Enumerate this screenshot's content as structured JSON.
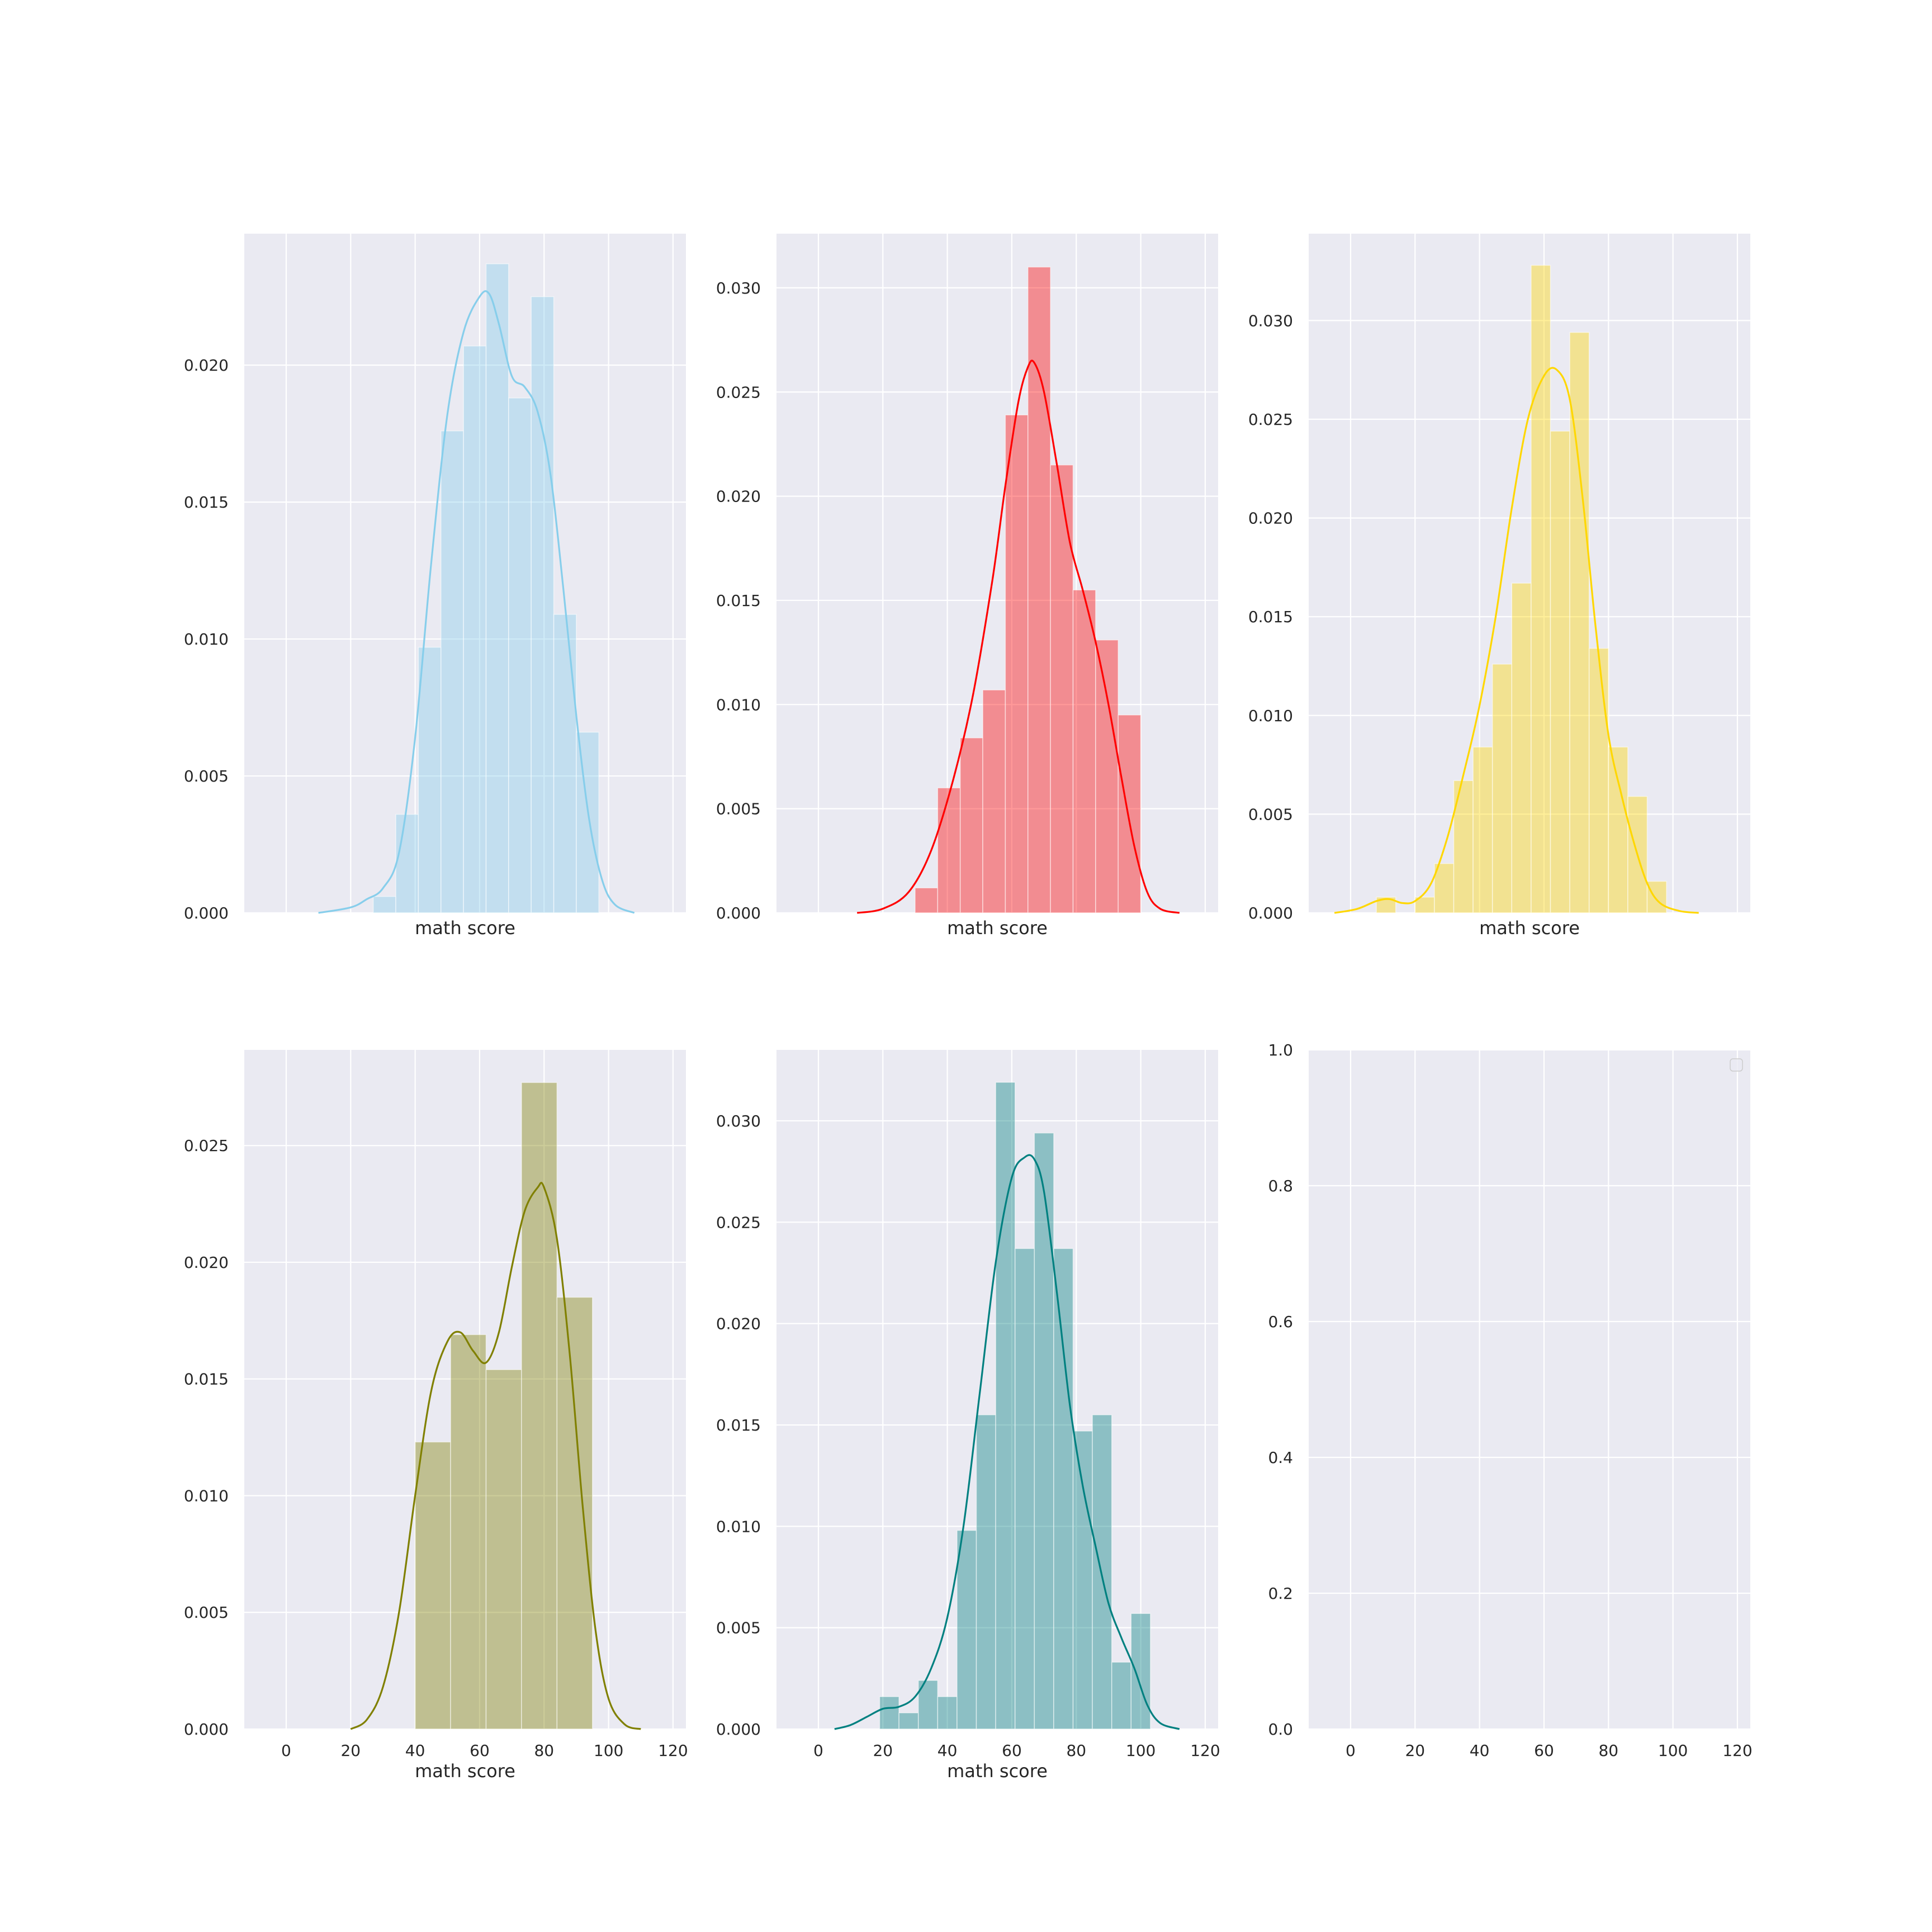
{
  "colors": {
    "figure_bg": "#ffffff",
    "axes_bg": "#eaeaf2",
    "grid": "#ffffff",
    "text": "#262626"
  },
  "chart_data": [
    {
      "type": "bar",
      "kind": "histogram_with_kde",
      "panel": "top-left",
      "color": "#87ceeb",
      "xlabel": "math score",
      "ylabel": "",
      "xlim": [
        -13,
        124
      ],
      "ylim": [
        0,
        0.0248
      ],
      "x_ticks": [
        0,
        20,
        40,
        60,
        80,
        100,
        120
      ],
      "x_tick_labels_visible": false,
      "y_ticks": [
        0.0,
        0.005,
        0.01,
        0.015,
        0.02
      ],
      "y_tick_labels": [
        "0.000",
        "0.005",
        "0.010",
        "0.015",
        "0.020"
      ],
      "grid": true,
      "bins": [
        {
          "x0": 27,
          "x1": 34,
          "height": 0.0006
        },
        {
          "x0": 34,
          "x1": 41,
          "height": 0.0036
        },
        {
          "x0": 41,
          "x1": 48,
          "height": 0.0097
        },
        {
          "x0": 48,
          "x1": 55,
          "height": 0.0176
        },
        {
          "x0": 55,
          "x1": 62,
          "height": 0.0207
        },
        {
          "x0": 62,
          "x1": 69,
          "height": 0.0237
        },
        {
          "x0": 69,
          "x1": 76,
          "height": 0.0188
        },
        {
          "x0": 76,
          "x1": 83,
          "height": 0.0225
        },
        {
          "x0": 83,
          "x1": 90,
          "height": 0.0109
        },
        {
          "x0": 90,
          "x1": 97,
          "height": 0.0066
        }
      ],
      "kde": [
        [
          10,
          0.0
        ],
        [
          20,
          0.0002
        ],
        [
          25,
          0.0005
        ],
        [
          30,
          0.0009
        ],
        [
          35,
          0.0022
        ],
        [
          40,
          0.0064
        ],
        [
          45,
          0.0128
        ],
        [
          50,
          0.0182
        ],
        [
          55,
          0.0212
        ],
        [
          60,
          0.0225
        ],
        [
          63,
          0.0226
        ],
        [
          66,
          0.0215
        ],
        [
          70,
          0.0196
        ],
        [
          74,
          0.0192
        ],
        [
          78,
          0.0183
        ],
        [
          82,
          0.016
        ],
        [
          86,
          0.0118
        ],
        [
          90,
          0.0072
        ],
        [
          94,
          0.0034
        ],
        [
          98,
          0.0012
        ],
        [
          102,
          0.0003
        ],
        [
          108,
          0.0
        ]
      ]
    },
    {
      "type": "bar",
      "kind": "histogram_with_kde",
      "panel": "top-middle",
      "color": "#ff0000",
      "xlabel": "math score",
      "ylabel": "",
      "xlim": [
        -13,
        124
      ],
      "ylim": [
        0,
        0.0326
      ],
      "x_ticks": [
        0,
        20,
        40,
        60,
        80,
        100,
        120
      ],
      "x_tick_labels_visible": false,
      "y_ticks": [
        0.0,
        0.005,
        0.01,
        0.015,
        0.02,
        0.025,
        0.03
      ],
      "y_tick_labels": [
        "0.000",
        "0.005",
        "0.010",
        "0.015",
        "0.020",
        "0.025",
        "0.030"
      ],
      "grid": true,
      "bins": [
        {
          "x0": 30,
          "x1": 37,
          "height": 0.0012
        },
        {
          "x0": 37,
          "x1": 44,
          "height": 0.006
        },
        {
          "x0": 44,
          "x1": 51,
          "height": 0.0084
        },
        {
          "x0": 51,
          "x1": 58,
          "height": 0.0107
        },
        {
          "x0": 58,
          "x1": 65,
          "height": 0.0239
        },
        {
          "x0": 65,
          "x1": 72,
          "height": 0.031
        },
        {
          "x0": 72,
          "x1": 79,
          "height": 0.0215
        },
        {
          "x0": 79,
          "x1": 86,
          "height": 0.0155
        },
        {
          "x0": 86,
          "x1": 93,
          "height": 0.0131
        },
        {
          "x0": 93,
          "x1": 100,
          "height": 0.0095
        }
      ],
      "kde": [
        [
          12,
          0.0
        ],
        [
          20,
          0.0002
        ],
        [
          28,
          0.001
        ],
        [
          35,
          0.003
        ],
        [
          42,
          0.0065
        ],
        [
          48,
          0.0105
        ],
        [
          54,
          0.016
        ],
        [
          58,
          0.0205
        ],
        [
          62,
          0.0245
        ],
        [
          65,
          0.0262
        ],
        [
          67,
          0.0264
        ],
        [
          70,
          0.025
        ],
        [
          74,
          0.0215
        ],
        [
          78,
          0.0178
        ],
        [
          82,
          0.0155
        ],
        [
          86,
          0.013
        ],
        [
          90,
          0.01
        ],
        [
          94,
          0.0065
        ],
        [
          98,
          0.0032
        ],
        [
          102,
          0.001
        ],
        [
          106,
          0.0002
        ],
        [
          112,
          0.0
        ]
      ]
    },
    {
      "type": "bar",
      "kind": "histogram_with_kde",
      "panel": "top-right",
      "color": "#ffd700",
      "xlabel": "math score",
      "ylabel": "",
      "xlim": [
        -13,
        124
      ],
      "ylim": [
        0,
        0.0344
      ],
      "x_ticks": [
        0,
        20,
        40,
        60,
        80,
        100,
        120
      ],
      "x_tick_labels_visible": false,
      "y_ticks": [
        0.0,
        0.005,
        0.01,
        0.015,
        0.02,
        0.025,
        0.03
      ],
      "y_tick_labels": [
        "0.000",
        "0.005",
        "0.010",
        "0.015",
        "0.020",
        "0.025",
        "0.030"
      ],
      "grid": true,
      "bins": [
        {
          "x0": 8,
          "x1": 14,
          "height": 0.0008
        },
        {
          "x0": 14,
          "x1": 20,
          "height": 0.0
        },
        {
          "x0": 20,
          "x1": 26,
          "height": 0.0008
        },
        {
          "x0": 26,
          "x1": 32,
          "height": 0.0025
        },
        {
          "x0": 32,
          "x1": 38,
          "height": 0.0067
        },
        {
          "x0": 38,
          "x1": 44,
          "height": 0.0084
        },
        {
          "x0": 44,
          "x1": 50,
          "height": 0.0126
        },
        {
          "x0": 50,
          "x1": 56,
          "height": 0.0167
        },
        {
          "x0": 56,
          "x1": 62,
          "height": 0.0328
        },
        {
          "x0": 62,
          "x1": 68,
          "height": 0.0244
        },
        {
          "x0": 68,
          "x1": 74,
          "height": 0.0294
        },
        {
          "x0": 74,
          "x1": 80,
          "height": 0.0134
        },
        {
          "x0": 80,
          "x1": 86,
          "height": 0.0084
        },
        {
          "x0": 86,
          "x1": 92,
          "height": 0.0059
        },
        {
          "x0": 92,
          "x1": 98,
          "height": 0.0016
        }
      ],
      "kde": [
        [
          -5,
          0.0
        ],
        [
          2,
          0.0002
        ],
        [
          8,
          0.0006
        ],
        [
          12,
          0.0007
        ],
        [
          16,
          0.0005
        ],
        [
          20,
          0.0006
        ],
        [
          25,
          0.0015
        ],
        [
          30,
          0.0038
        ],
        [
          35,
          0.007
        ],
        [
          40,
          0.0105
        ],
        [
          45,
          0.015
        ],
        [
          50,
          0.0205
        ],
        [
          55,
          0.025
        ],
        [
          60,
          0.0272
        ],
        [
          64,
          0.0275
        ],
        [
          68,
          0.026
        ],
        [
          72,
          0.021
        ],
        [
          76,
          0.0145
        ],
        [
          80,
          0.009
        ],
        [
          84,
          0.006
        ],
        [
          88,
          0.0035
        ],
        [
          92,
          0.0015
        ],
        [
          96,
          0.0005
        ],
        [
          102,
          0.0001
        ],
        [
          108,
          0.0
        ]
      ]
    },
    {
      "type": "bar",
      "kind": "histogram_with_kde",
      "panel": "bottom-left",
      "color": "#808000",
      "xlabel": "math score",
      "ylabel": "",
      "xlim": [
        -13,
        124
      ],
      "ylim": [
        0,
        0.0291
      ],
      "x_ticks": [
        0,
        20,
        40,
        60,
        80,
        100,
        120
      ],
      "x_tick_labels": [
        "0",
        "20",
        "40",
        "60",
        "80",
        "100",
        "120"
      ],
      "x_tick_labels_visible": true,
      "y_ticks": [
        0.0,
        0.005,
        0.01,
        0.015,
        0.02,
        0.025
      ],
      "y_tick_labels": [
        "0.000",
        "0.005",
        "0.010",
        "0.015",
        "0.020",
        "0.025"
      ],
      "grid": true,
      "bins": [
        {
          "x0": 40,
          "x1": 51,
          "height": 0.0123
        },
        {
          "x0": 51,
          "x1": 62,
          "height": 0.0169
        },
        {
          "x0": 62,
          "x1": 73,
          "height": 0.0154
        },
        {
          "x0": 73,
          "x1": 84,
          "height": 0.0277
        },
        {
          "x0": 84,
          "x1": 95,
          "height": 0.0185
        }
      ],
      "kde": [
        [
          20,
          0.0
        ],
        [
          25,
          0.0004
        ],
        [
          30,
          0.0018
        ],
        [
          35,
          0.005
        ],
        [
          40,
          0.01
        ],
        [
          45,
          0.0145
        ],
        [
          50,
          0.0166
        ],
        [
          54,
          0.017
        ],
        [
          58,
          0.0162
        ],
        [
          62,
          0.0157
        ],
        [
          66,
          0.017
        ],
        [
          70,
          0.0198
        ],
        [
          74,
          0.0222
        ],
        [
          78,
          0.0232
        ],
        [
          80,
          0.0232
        ],
        [
          84,
          0.021
        ],
        [
          88,
          0.016
        ],
        [
          92,
          0.0095
        ],
        [
          96,
          0.0042
        ],
        [
          100,
          0.0013
        ],
        [
          105,
          0.0002
        ],
        [
          110,
          0.0
        ]
      ]
    },
    {
      "type": "bar",
      "kind": "histogram_with_kde",
      "panel": "bottom-middle",
      "color": "#008080",
      "xlabel": "math score",
      "ylabel": "",
      "xlim": [
        -13,
        124
      ],
      "ylim": [
        0,
        0.0335
      ],
      "x_ticks": [
        0,
        20,
        40,
        60,
        80,
        100,
        120
      ],
      "x_tick_labels": [
        "0",
        "20",
        "40",
        "60",
        "80",
        "100",
        "120"
      ],
      "x_tick_labels_visible": true,
      "y_ticks": [
        0.0,
        0.005,
        0.01,
        0.015,
        0.02,
        0.025,
        0.03
      ],
      "y_tick_labels": [
        "0.000",
        "0.005",
        "0.010",
        "0.015",
        "0.020",
        "0.025",
        "0.030"
      ],
      "grid": true,
      "bins": [
        {
          "x0": 19,
          "x1": 25,
          "height": 0.0016
        },
        {
          "x0": 25,
          "x1": 31,
          "height": 0.0008
        },
        {
          "x0": 31,
          "x1": 37,
          "height": 0.0024
        },
        {
          "x0": 37,
          "x1": 43,
          "height": 0.0016
        },
        {
          "x0": 43,
          "x1": 49,
          "height": 0.0098
        },
        {
          "x0": 49,
          "x1": 55,
          "height": 0.0155
        },
        {
          "x0": 55,
          "x1": 61,
          "height": 0.0319
        },
        {
          "x0": 61,
          "x1": 67,
          "height": 0.0237
        },
        {
          "x0": 67,
          "x1": 73,
          "height": 0.0294
        },
        {
          "x0": 73,
          "x1": 79,
          "height": 0.0237
        },
        {
          "x0": 79,
          "x1": 85,
          "height": 0.0147
        },
        {
          "x0": 85,
          "x1": 91,
          "height": 0.0155
        },
        {
          "x0": 91,
          "x1": 97,
          "height": 0.0033
        },
        {
          "x0": 97,
          "x1": 103,
          "height": 0.0057
        }
      ],
      "kde": [
        [
          5,
          0.0
        ],
        [
          10,
          0.0002
        ],
        [
          15,
          0.0006
        ],
        [
          20,
          0.001
        ],
        [
          25,
          0.0011
        ],
        [
          30,
          0.0016
        ],
        [
          35,
          0.003
        ],
        [
          40,
          0.0055
        ],
        [
          45,
          0.01
        ],
        [
          50,
          0.0165
        ],
        [
          55,
          0.023
        ],
        [
          60,
          0.0272
        ],
        [
          64,
          0.0282
        ],
        [
          67,
          0.0281
        ],
        [
          70,
          0.0265
        ],
        [
          74,
          0.0215
        ],
        [
          78,
          0.016
        ],
        [
          82,
          0.012
        ],
        [
          86,
          0.009
        ],
        [
          90,
          0.0062
        ],
        [
          94,
          0.0045
        ],
        [
          98,
          0.003
        ],
        [
          102,
          0.0012
        ],
        [
          106,
          0.0003
        ],
        [
          112,
          0.0
        ]
      ]
    },
    {
      "type": "scatter",
      "panel": "bottom-right",
      "empty": true,
      "xlabel": "",
      "ylabel": "",
      "xlim": [
        -13,
        124
      ],
      "ylim": [
        0,
        1
      ],
      "x_ticks": [
        0,
        20,
        40,
        60,
        80,
        100,
        120
      ],
      "x_tick_labels": [
        "0",
        "20",
        "40",
        "60",
        "80",
        "100",
        "120"
      ],
      "y_ticks": [
        0.0,
        0.2,
        0.4,
        0.6,
        0.8,
        1.0
      ],
      "y_tick_labels": [
        "0.0",
        "0.2",
        "0.4",
        "0.6",
        "0.8",
        "1.0"
      ],
      "grid": true,
      "legend": "top-right",
      "legend_entries": []
    }
  ]
}
